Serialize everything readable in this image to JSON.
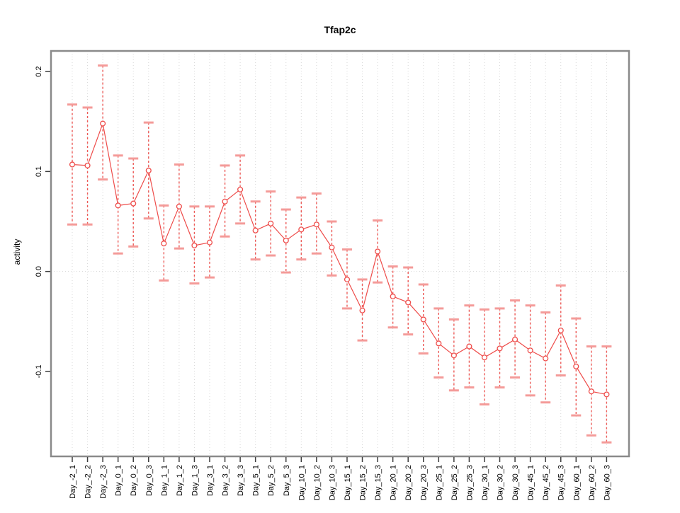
{
  "chart_data": {
    "type": "line",
    "title": "Tfap2c",
    "xlabel": "",
    "ylabel": "activity",
    "ylim": [
      -0.185,
      0.2206
    ],
    "yticks": [
      -0.1,
      0.0,
      0.1,
      0.2
    ],
    "ytick_labels": [
      "-0.1",
      "0.0",
      "0.1",
      "0.2"
    ],
    "grid": {
      "vertical_per_category": true,
      "zero_line": true,
      "style": "dotted"
    },
    "legend_position": "none",
    "categories": [
      "Day_-2_1",
      "Day_-2_2",
      "Day_-2_3",
      "Day_0_1",
      "Day_0_2",
      "Day_0_3",
      "Day_1_1",
      "Day_1_2",
      "Day_1_3",
      "Day_3_1",
      "Day_3_2",
      "Day_3_3",
      "Day_5_1",
      "Day_5_2",
      "Day_5_3",
      "Day_10_1",
      "Day_10_2",
      "Day_10_3",
      "Day_15_1",
      "Day_15_2",
      "Day_15_3",
      "Day_20_1",
      "Day_20_2",
      "Day_20_3",
      "Day_25_1",
      "Day_25_2",
      "Day_25_3",
      "Day_30_1",
      "Day_30_2",
      "Day_30_3",
      "Day_45_1",
      "Day_45_2",
      "Day_45_3",
      "Day_60_1",
      "Day_60_2",
      "Day_60_3"
    ],
    "series": [
      {
        "name": "activity",
        "marker": "open-circle",
        "values": [
          0.107,
          0.106,
          0.148,
          0.066,
          0.068,
          0.101,
          0.028,
          0.065,
          0.026,
          0.029,
          0.07,
          0.082,
          0.041,
          0.048,
          0.031,
          0.042,
          0.047,
          0.024,
          -0.008,
          -0.039,
          0.02,
          -0.025,
          -0.031,
          -0.048,
          -0.072,
          -0.084,
          -0.075,
          -0.086,
          -0.077,
          -0.068,
          -0.079,
          -0.087,
          -0.059,
          -0.095,
          -0.12,
          -0.123
        ],
        "lower": [
          0.047,
          0.047,
          0.092,
          0.018,
          0.025,
          0.053,
          -0.009,
          0.023,
          -0.012,
          -0.006,
          0.035,
          0.048,
          0.012,
          0.016,
          -0.001,
          0.012,
          0.018,
          -0.004,
          -0.037,
          -0.069,
          -0.011,
          -0.056,
          -0.063,
          -0.082,
          -0.106,
          -0.119,
          -0.116,
          -0.133,
          -0.116,
          -0.106,
          -0.124,
          -0.131,
          -0.104,
          -0.144,
          -0.164,
          -0.171
        ],
        "upper": [
          0.167,
          0.164,
          0.206,
          0.116,
          0.113,
          0.149,
          0.066,
          0.107,
          0.065,
          0.065,
          0.106,
          0.116,
          0.07,
          0.08,
          0.062,
          0.074,
          0.078,
          0.05,
          0.022,
          -0.008,
          0.051,
          0.005,
          0.004,
          -0.013,
          -0.037,
          -0.048,
          -0.034,
          -0.038,
          -0.037,
          -0.029,
          -0.034,
          -0.041,
          -0.014,
          -0.047,
          -0.075,
          -0.075
        ]
      }
    ],
    "colors": {
      "series_red": "#ee4c4a",
      "errorbar_dash": "#ed5b58",
      "errorbar_cap": "#f49b99",
      "grid": "#d8d8d8",
      "box": "#8a8a8a",
      "tick": "#3d3d3d",
      "text": "#000000",
      "background": "#ffffff",
      "marker_fill": "#ffffff"
    }
  }
}
